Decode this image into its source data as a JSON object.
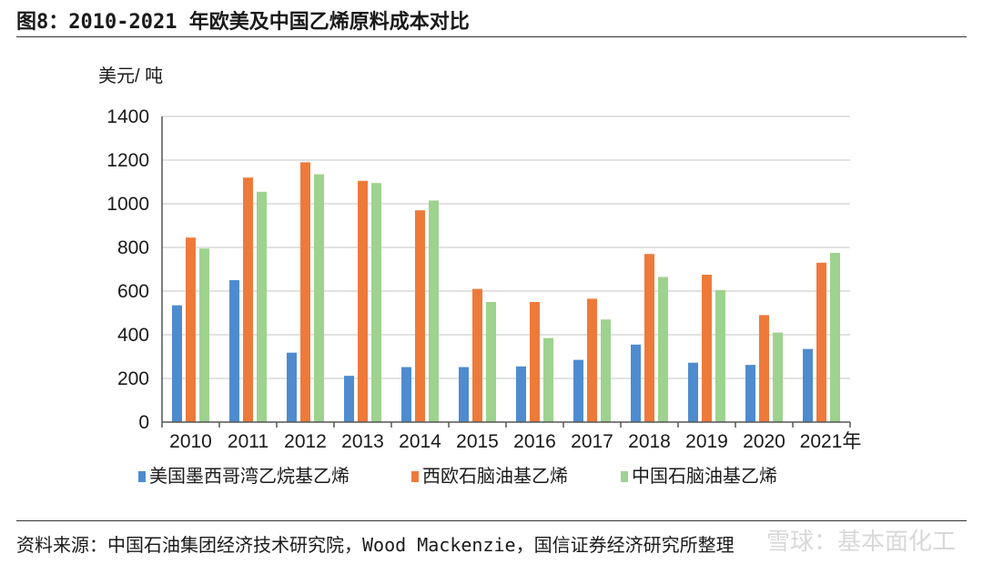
{
  "header": {
    "title": "图8：2010-2021 年欧美及中国乙烯原料成本对比"
  },
  "footer": {
    "source": "资料来源：中国石油集团经济技术研究院，Wood Mackenzie，国信证券经济研究所整理",
    "watermark": "雪球：基本面化工"
  },
  "colors": {
    "us": "#4e8ccf",
    "eu": "#ee7a3a",
    "cn": "#9ed28f",
    "grid": "#d9d9d9",
    "axis": "#555555"
  },
  "chart_data": {
    "type": "bar",
    "ylabel": "美元/ 吨",
    "xlabel_suffix": "年",
    "ylim": [
      0,
      1400
    ],
    "yticks": [
      0,
      200,
      400,
      600,
      800,
      1000,
      1200,
      1400
    ],
    "categories": [
      "2010",
      "2011",
      "2012",
      "2013",
      "2014",
      "2015",
      "2016",
      "2017",
      "2018",
      "2019",
      "2020",
      "2021"
    ],
    "grid": true,
    "legend_position": "bottom",
    "series": [
      {
        "name": "美国墨西哥湾乙烷基乙烯",
        "color": "#4e8ccf",
        "values": [
          535,
          650,
          318,
          212,
          252,
          252,
          255,
          285,
          355,
          272,
          262,
          335
        ]
      },
      {
        "name": "西欧石脑油基乙烯",
        "color": "#ee7a3a",
        "values": [
          845,
          1120,
          1190,
          1105,
          970,
          610,
          550,
          565,
          770,
          675,
          490,
          730
        ]
      },
      {
        "name": "中国石脑油基乙烯",
        "color": "#9ed28f",
        "values": [
          795,
          1055,
          1135,
          1095,
          1015,
          550,
          385,
          470,
          665,
          605,
          410,
          775
        ]
      }
    ]
  }
}
